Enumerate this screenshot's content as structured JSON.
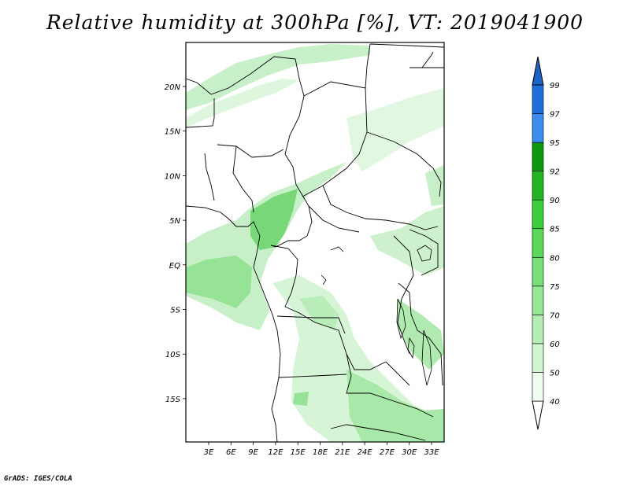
{
  "title": "Relative humidity at 300hPa [%], VT: 2019041900",
  "credit": "GrADS: IGES/COLA",
  "map": {
    "lon_labels": [
      "3E",
      "6E",
      "9E",
      "12E",
      "15E",
      "18E",
      "21E",
      "24E",
      "27E",
      "30E",
      "33E"
    ],
    "lat_labels": [
      "20N",
      "15N",
      "10N",
      "5N",
      "EQ",
      "5S",
      "10S",
      "15S"
    ]
  },
  "colorbar": {
    "levels": [
      "40",
      "50",
      "60",
      "70",
      "75",
      "80",
      "85",
      "90",
      "92",
      "95",
      "97",
      "99"
    ],
    "colors": [
      "#f0fcf0",
      "#d2f5d2",
      "#b4eeb4",
      "#96e796",
      "#78e078",
      "#5ad85a",
      "#3ccf3c",
      "#23b423",
      "#0f960f",
      "#3c8cf0",
      "#1e6edc",
      "#0a50c8"
    ],
    "over_color": "#1e64c8",
    "under_color": "#ffffff"
  },
  "colors": {
    "land_line": "#000000",
    "shade_light": "#c8f0c8",
    "shade_mid": "#96e296",
    "shade_dark": "#5fd05f"
  }
}
